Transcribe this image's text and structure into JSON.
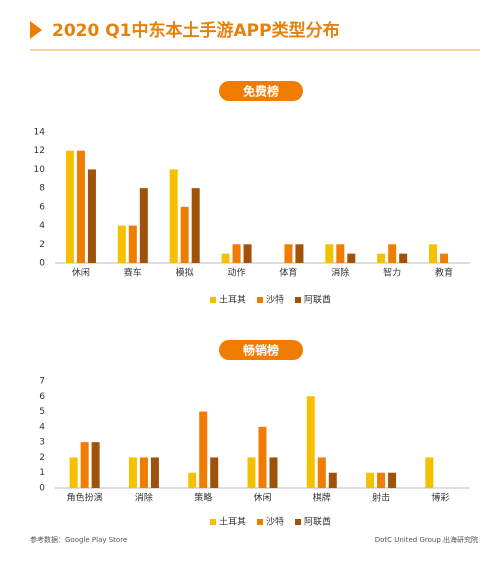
{
  "title": "2020 Q1中东本土手游APP类型分布",
  "chart_data": [
    {
      "type": "bar",
      "title": "免费榜",
      "categories": [
        "休闲",
        "赛车",
        "模拟",
        "动作",
        "体育",
        "消除",
        "智力",
        "教育"
      ],
      "series": [
        {
          "name": "土耳其",
          "color": "#f5c000",
          "values": [
            12,
            4,
            10,
            1,
            0,
            2,
            1,
            2
          ]
        },
        {
          "name": "沙特",
          "color": "#f07c00",
          "values": [
            12,
            4,
            6,
            2,
            2,
            2,
            2,
            1
          ]
        },
        {
          "name": "阿联酋",
          "color": "#a0520a",
          "values": [
            10,
            8,
            8,
            2,
            2,
            1,
            1,
            0
          ]
        }
      ],
      "ylim": [
        0,
        14
      ],
      "yticks": [
        0,
        2,
        4,
        6,
        8,
        10,
        12,
        14
      ]
    },
    {
      "type": "bar",
      "title": "畅销榜",
      "categories": [
        "角色扮演",
        "消除",
        "策略",
        "休闲",
        "棋牌",
        "射击",
        "博彩"
      ],
      "series": [
        {
          "name": "土耳其",
          "color": "#f5c000",
          "values": [
            2,
            2,
            1,
            2,
            6,
            1,
            2
          ]
        },
        {
          "name": "沙特",
          "color": "#f07c00",
          "values": [
            3,
            2,
            5,
            4,
            2,
            1,
            0
          ]
        },
        {
          "name": "阿联酋",
          "color": "#a0520a",
          "values": [
            3,
            2,
            2,
            2,
            1,
            1,
            0
          ]
        }
      ],
      "ylim": [
        0,
        7
      ],
      "yticks": [
        0,
        1,
        2,
        3,
        4,
        5,
        6,
        7
      ]
    }
  ],
  "footer": {
    "source": "参考数据：Google Play Store",
    "brand": "DotC United Group 出海研究院"
  }
}
